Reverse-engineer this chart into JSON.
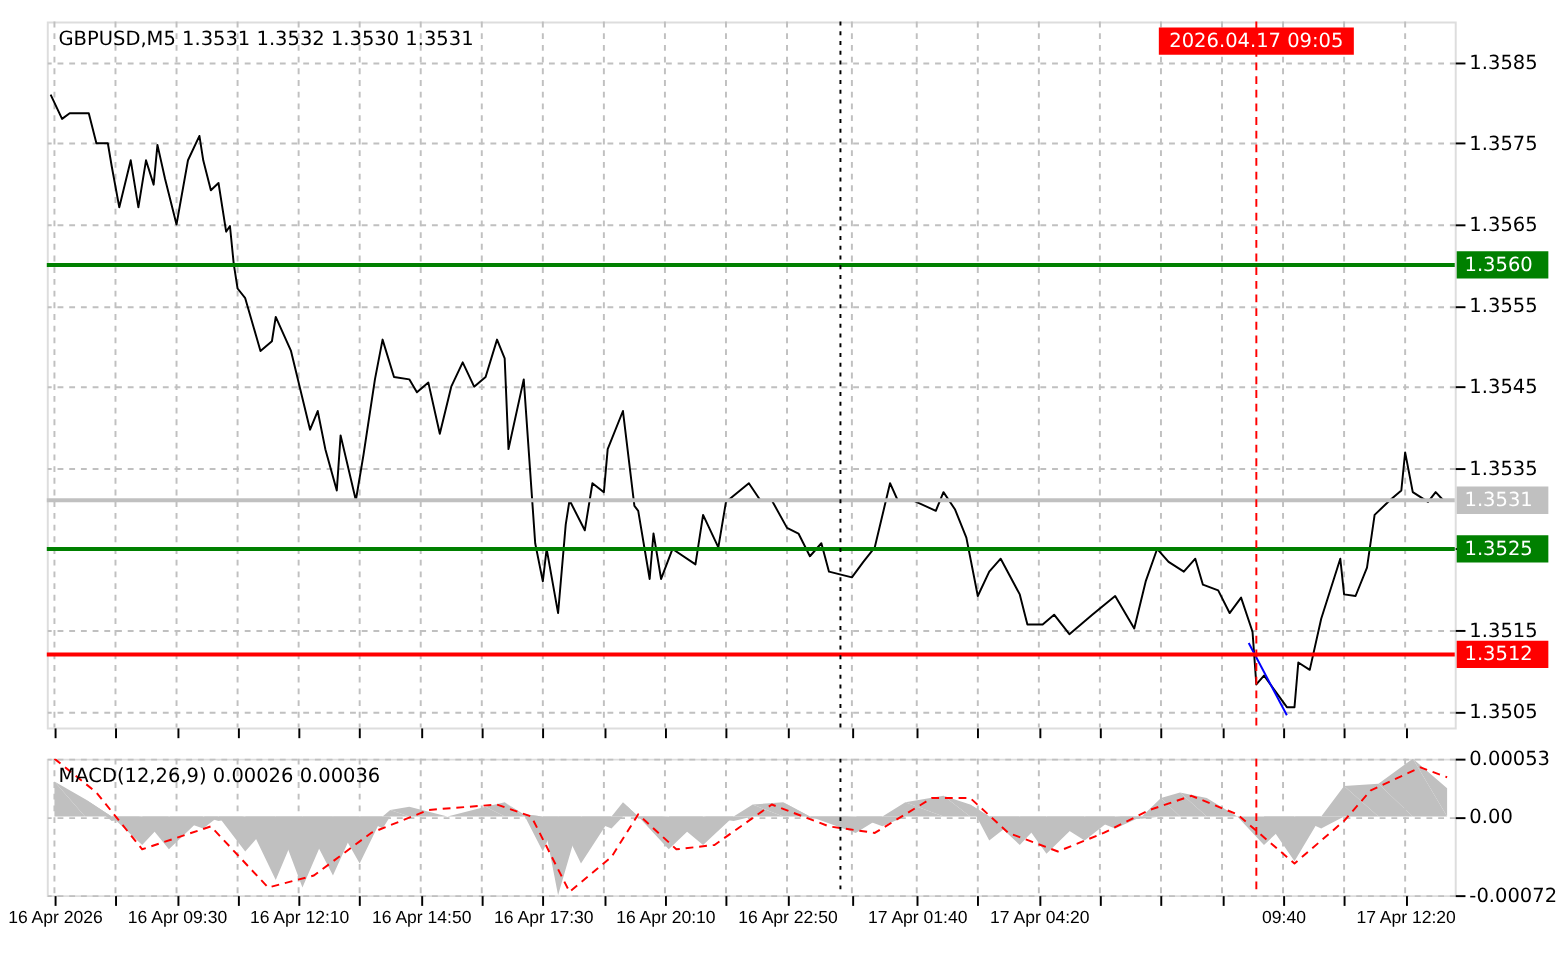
{
  "chart_data": [
    {
      "type": "line",
      "title": "GBPUSD,M5  1.3531 1.3532 1.3530 1.3531",
      "tick_labels": "y",
      "grid": true,
      "marker": "none",
      "line_style": "solid",
      "xlim": [
        "2026-04-16T06:40",
        "2026-04-17T13:25"
      ],
      "ylim": [
        1.3503,
        1.359
      ],
      "xticks": [
        {
          "value": "2026-04-16T06:50",
          "label": null
        },
        {
          "value": "2026-04-16T08:10",
          "label": null
        },
        {
          "value": "2026-04-16T09:30",
          "label": null
        },
        {
          "value": "2026-04-16T10:50",
          "label": null
        },
        {
          "value": "2026-04-16T12:10",
          "label": null
        },
        {
          "value": "2026-04-16T13:30",
          "label": null
        },
        {
          "value": "2026-04-16T14:50",
          "label": null
        },
        {
          "value": "2026-04-16T16:10",
          "label": null
        },
        {
          "value": "2026-04-16T17:30",
          "label": null
        },
        {
          "value": "2026-04-16T18:50",
          "label": null
        },
        {
          "value": "2026-04-16T20:10",
          "label": null
        },
        {
          "value": "2026-04-16T21:30",
          "label": null
        },
        {
          "value": "2026-04-16T22:50",
          "label": null
        },
        {
          "value": "2026-04-17T00:15",
          "label": null
        },
        {
          "value": "2026-04-17T01:40",
          "label": null
        },
        {
          "value": "2026-04-17T03:00",
          "label": null
        },
        {
          "value": "2026-04-17T04:20",
          "label": null
        },
        {
          "value": "2026-04-17T05:40",
          "label": null
        },
        {
          "value": "2026-04-17T07:00",
          "label": null
        },
        {
          "value": "2026-04-17T08:20",
          "label": null
        },
        {
          "value": "2026-04-17T09:40",
          "label": null
        },
        {
          "value": "2026-04-17T11:00",
          "label": null
        },
        {
          "value": "2026-04-17T12:20",
          "label": null
        }
      ],
      "yticks": [
        1.3505,
        1.3515,
        {
          "value": 1.3525,
          "label": null
        },
        1.3535,
        1.3545,
        1.3555,
        1.3565,
        1.3575,
        1.3585
      ],
      "series": [
        {
          "color": "#000000",
          "x": [
            "2026-04-16T06:45",
            "2026-04-16T07:00",
            "2026-04-16T07:10",
            "2026-04-16T07:35",
            "2026-04-16T07:45",
            "2026-04-16T08:00",
            "2026-04-16T08:05",
            "2026-04-16T08:15",
            "2026-04-16T08:30",
            "2026-04-16T08:40",
            "2026-04-16T08:50",
            "2026-04-16T09:00",
            "2026-04-16T09:05",
            "2026-04-16T09:15",
            "2026-04-16T09:30",
            "2026-04-16T09:45",
            "2026-04-16T10:00",
            "2026-04-16T10:05",
            "2026-04-16T10:15",
            "2026-04-16T10:25",
            "2026-04-16T10:35",
            "2026-04-16T10:40",
            "2026-04-16T10:45",
            "2026-04-16T10:50",
            "2026-04-16T11:00",
            "2026-04-16T11:20",
            "2026-04-16T11:35",
            "2026-04-16T11:40",
            "2026-04-16T12:00",
            "2026-04-16T12:25",
            "2026-04-16T12:35",
            "2026-04-16T12:45",
            "2026-04-16T13:00",
            "2026-04-16T13:05",
            "2026-04-16T13:25",
            "2026-04-16T13:35",
            "2026-04-16T13:50",
            "2026-04-16T14:00",
            "2026-04-16T14:15",
            "2026-04-16T14:35",
            "2026-04-16T14:45",
            "2026-04-16T15:00",
            "2026-04-16T15:15",
            "2026-04-16T15:30",
            "2026-04-16T15:45",
            "2026-04-16T16:00",
            "2026-04-16T16:15",
            "2026-04-16T16:30",
            "2026-04-16T16:40",
            "2026-04-16T16:45",
            "2026-04-16T17:05",
            "2026-04-16T17:20",
            "2026-04-16T17:30",
            "2026-04-16T17:35",
            "2026-04-16T17:50",
            "2026-04-16T18:00",
            "2026-04-16T18:05",
            "2026-04-16T18:25",
            "2026-04-16T18:35",
            "2026-04-16T18:50",
            "2026-04-16T18:55",
            "2026-04-16T19:15",
            "2026-04-16T19:30",
            "2026-04-16T19:35",
            "2026-04-16T19:50",
            "2026-04-16T19:55",
            "2026-04-16T20:05",
            "2026-04-16T20:20",
            "2026-04-16T20:50",
            "2026-04-16T21:00",
            "2026-04-16T21:20",
            "2026-04-16T21:30",
            "2026-04-16T22:00",
            "2026-04-16T22:15",
            "2026-04-16T22:30",
            "2026-04-16T22:50",
            "2026-04-16T23:05",
            "2026-04-16T23:20",
            "2026-04-16T23:35",
            "2026-04-16T23:45",
            "2026-04-17T00:15",
            "2026-04-17T00:30",
            "2026-04-17T00:45",
            "2026-04-17T01:05",
            "2026-04-17T01:15",
            "2026-04-17T01:35",
            "2026-04-17T02:05",
            "2026-04-17T02:15",
            "2026-04-17T02:30",
            "2026-04-17T02:45",
            "2026-04-17T03:00",
            "2026-04-17T03:15",
            "2026-04-17T03:30",
            "2026-04-17T03:55",
            "2026-04-17T04:05",
            "2026-04-17T04:25",
            "2026-04-17T04:40",
            "2026-04-17T05:00",
            "2026-04-17T05:30",
            "2026-04-17T06:00",
            "2026-04-17T06:25",
            "2026-04-17T06:40",
            "2026-04-17T06:55",
            "2026-04-17T07:10",
            "2026-04-17T07:30",
            "2026-04-17T07:45",
            "2026-04-17T07:55",
            "2026-04-17T08:15",
            "2026-04-17T08:30",
            "2026-04-17T08:45",
            "2026-04-17T09:00",
            "2026-04-17T09:05",
            "2026-04-17T09:15",
            "2026-04-17T09:45",
            "2026-04-17T09:55",
            "2026-04-17T10:00",
            "2026-04-17T10:15",
            "2026-04-17T10:30",
            "2026-04-17T10:55",
            "2026-04-17T11:00",
            "2026-04-17T11:15",
            "2026-04-17T11:30",
            "2026-04-17T11:40",
            "2026-04-17T12:00",
            "2026-04-17T12:15",
            "2026-04-17T12:20",
            "2026-04-17T12:30",
            "2026-04-17T12:50",
            "2026-04-17T13:00",
            "2026-04-17T13:10"
          ],
          "values": [
            1.3581,
            1.3578,
            1.35787,
            1.35787,
            1.3575,
            1.3575,
            1.35722,
            1.35671,
            1.35729,
            1.35671,
            1.35729,
            1.35699,
            1.35748,
            1.35706,
            1.3565,
            1.35729,
            1.35759,
            1.35729,
            1.35692,
            1.35701,
            1.35641,
            1.35648,
            1.35601,
            1.35571,
            1.35559,
            1.35494,
            1.35506,
            1.35536,
            1.35494,
            1.35397,
            1.3542,
            1.35373,
            1.35322,
            1.3539,
            1.3531,
            1.35366,
            1.35459,
            1.35508,
            1.35462,
            1.35459,
            1.35443,
            1.35455,
            1.35392,
            1.3545,
            1.3548,
            1.3545,
            1.35462,
            1.35508,
            1.35485,
            1.35373,
            1.35459,
            1.35257,
            1.3521,
            1.3525,
            1.35171,
            1.3528,
            1.3531,
            1.35273,
            1.35331,
            1.3532,
            1.35373,
            1.3542,
            1.35303,
            1.35297,
            1.35213,
            1.35269,
            1.35213,
            1.3525,
            1.35231,
            1.35292,
            1.35252,
            1.35308,
            1.35331,
            1.3531,
            1.3531,
            1.35276,
            1.35269,
            1.35241,
            1.35257,
            1.35222,
            1.35215,
            1.35234,
            1.35252,
            1.35331,
            1.3531,
            1.3531,
            1.35297,
            1.3532,
            1.35299,
            1.35264,
            1.35192,
            1.35222,
            1.35238,
            1.35194,
            1.35157,
            1.35157,
            1.35169,
            1.35145,
            1.35169,
            1.35192,
            1.35152,
            1.3521,
            1.3525,
            1.35234,
            1.35222,
            1.35238,
            1.35206,
            1.35199,
            1.35171,
            1.3519,
            1.35148,
            1.35083,
            1.35094,
            1.35055,
            1.35055,
            1.3511,
            1.35101,
            1.35164,
            1.35238,
            1.35194,
            1.35192,
            1.35227,
            1.35292,
            1.3531,
            1.35322,
            1.35369,
            1.3532,
            1.35308,
            1.3532,
            1.3531
          ]
        },
        {
          "color": "#0000ff",
          "x": [
            "2026-04-17T08:55",
            "2026-04-17T09:45"
          ],
          "values": [
            1.35134,
            1.35045
          ]
        }
      ],
      "ref_lines": [
        {
          "axis": "y",
          "value": 1.356,
          "label": "1.3560",
          "color": "#008000",
          "line_style": "solid"
        },
        {
          "axis": "y",
          "value": 1.3525,
          "label": "1.3525",
          "color": "#008000",
          "line_style": "solid"
        },
        {
          "axis": "y",
          "value": 1.3512,
          "label": "1.3512",
          "color": "#ff0000",
          "line_style": "solid"
        },
        {
          "axis": "y",
          "value": 1.3531,
          "label": "1.3531",
          "color": "#c0c0c0",
          "line_style": "solid"
        },
        {
          "axis": "x",
          "value": "2026-04-17T00:00",
          "color": "#000000",
          "line_style": "dotted"
        },
        {
          "axis": "x",
          "value": "2026-04-17T09:05",
          "label": "2026.04.17 09:05",
          "color": "#ff0000",
          "line_style": "dashed"
        }
      ]
    },
    {
      "type": "area",
      "title": "MACD(12,26,9) 0.00026 0.00036",
      "grid": true,
      "marker": "none",
      "xlim": [
        "2026-04-16T06:40",
        "2026-04-17T13:25"
      ],
      "ylim": [
        -0.00072,
        0.00053
      ],
      "xticks": [
        {
          "value": "2026-04-16T06:50",
          "label": "16 Apr 2026"
        },
        {
          "value": "2026-04-16T08:10",
          "label": null
        },
        {
          "value": "2026-04-16T09:30",
          "label": "16 Apr 09:30"
        },
        {
          "value": "2026-04-16T10:50",
          "label": null
        },
        {
          "value": "2026-04-16T12:10",
          "label": "16 Apr 12:10"
        },
        {
          "value": "2026-04-16T13:30",
          "label": null
        },
        {
          "value": "2026-04-16T14:50",
          "label": "16 Apr 14:50"
        },
        {
          "value": "2026-04-16T16:10",
          "label": null
        },
        {
          "value": "2026-04-16T17:30",
          "label": "16 Apr 17:30"
        },
        {
          "value": "2026-04-16T18:50",
          "label": null
        },
        {
          "value": "2026-04-16T20:10",
          "label": "16 Apr 20:10"
        },
        {
          "value": "2026-04-16T21:30",
          "label": null
        },
        {
          "value": "2026-04-16T22:50",
          "label": "16 Apr 22:50"
        },
        {
          "value": "2026-04-17T00:15",
          "label": null
        },
        {
          "value": "2026-04-17T01:40",
          "label": "17 Apr 01:40"
        },
        {
          "value": "2026-04-17T03:00",
          "label": null
        },
        {
          "value": "2026-04-17T04:20",
          "label": "17 Apr 04:20"
        },
        {
          "value": "2026-04-17T05:40",
          "label": null
        },
        {
          "value": "2026-04-17T07:00",
          "label": null
        },
        {
          "value": "2026-04-17T08:20",
          "label": null
        },
        {
          "value": "2026-04-17T09:40",
          "label": "09:40"
        },
        {
          "value": "2026-04-17T11:00",
          "label": null
        },
        {
          "value": "2026-04-17T12:20",
          "label": "17 Apr 12:20"
        }
      ],
      "yticks": [
        -0.00072,
        {
          "value": 0,
          "label": "0.00"
        },
        0.00053
      ],
      "series": [
        {
          "type": "area",
          "color": "#c0c0c0",
          "x": [
            "2026-04-16T06:50",
            "2026-04-16T07:30",
            "2026-04-16T08:05",
            "2026-04-16T08:45",
            "2026-04-16T09:20",
            "2026-04-16T10:05",
            "2026-04-16T10:25",
            "2026-04-16T11:00",
            "2026-04-16T11:40",
            "2026-04-16T12:15",
            "2026-04-16T12:55",
            "2026-04-16T13:30",
            "2026-04-16T14:00",
            "2026-04-16T14:10",
            "2026-04-16T14:35",
            "2026-04-16T15:25",
            "2026-04-16T16:15",
            "2026-04-16T16:40",
            "2026-04-16T17:05",
            "2026-04-16T17:30",
            "2026-04-16T17:50",
            "2026-04-16T18:20",
            "2026-04-16T19:00",
            "2026-04-16T19:15",
            "2026-04-16T19:35",
            "2026-04-16T20:15",
            "2026-04-16T21:00",
            "2026-04-16T21:40",
            "2026-04-16T22:05",
            "2026-04-16T22:45",
            "2026-04-16T23:20",
            "2026-04-17T00:20",
            "2026-04-17T00:55",
            "2026-04-17T01:25",
            "2026-04-17T02:15",
            "2026-04-17T02:50",
            "2026-04-17T03:15",
            "2026-04-17T03:55",
            "2026-04-17T04:30",
            "2026-04-17T05:20",
            "2026-04-17T06:00",
            "2026-04-17T06:35",
            "2026-04-17T07:00",
            "2026-04-17T07:25",
            "2026-04-17T08:00",
            "2026-04-17T08:40",
            "2026-04-17T09:15",
            "2026-04-17T09:55",
            "2026-04-17T10:30",
            "2026-04-17T11:00",
            "2026-04-17T11:45",
            "2026-04-17T12:30",
            "2026-04-17T13:15"
          ],
          "values": [
            0.00032,
            0.00016,
            -4e-05,
            -0.00026,
            -0.0003,
            -0.00011,
            -4e-05,
            -0.00032,
            -0.00058,
            -0.00065,
            -0.00054,
            -0.00043,
            -0.00011,
            6e-05,
            9e-05,
            0,
            9e-05,
            0.00013,
            2e-05,
            -0.00032,
            -0.00072,
            -0.00043,
            -0.00011,
            0.00013,
            -2e-05,
            -0.0003,
            -0.00026,
            -4e-05,
            0.00011,
            0.00013,
            -2e-05,
            -0.00015,
            -9e-05,
            0.00013,
            0.00019,
            0.00011,
            -0.00022,
            -0.00026,
            -0.00034,
            -0.00022,
            -0.00011,
            -2e-05,
            0.00017,
            0.00022,
            0.00017,
            0,
            -0.00026,
            -0.00041,
            -0.00011,
            0.00028,
            0.0003,
            0.00053,
            0.00026
          ]
        },
        {
          "type": "line",
          "line_style": "dashed",
          "color": "#ff0000",
          "x": [
            "2026-04-16T06:50",
            "2026-04-16T07:45",
            "2026-04-16T08:45",
            "2026-04-16T10:15",
            "2026-04-16T11:30",
            "2026-04-16T12:30",
            "2026-04-16T13:45",
            "2026-04-16T15:00",
            "2026-04-16T16:30",
            "2026-04-16T17:15",
            "2026-04-16T18:05",
            "2026-04-16T19:00",
            "2026-04-16T19:35",
            "2026-04-16T20:25",
            "2026-04-16T21:15",
            "2026-04-16T22:30",
            "2026-04-16T23:45",
            "2026-04-17T00:45",
            "2026-04-17T02:00",
            "2026-04-17T02:50",
            "2026-04-17T03:40",
            "2026-04-17T04:45",
            "2026-04-17T05:45",
            "2026-04-17T06:45",
            "2026-04-17T07:40",
            "2026-04-17T08:40",
            "2026-04-17T09:55",
            "2026-04-17T11:00",
            "2026-04-17T11:35",
            "2026-04-17T12:40",
            "2026-04-17T13:15"
          ],
          "values": [
            0.00053,
            0.00022,
            -0.0003,
            -9e-05,
            -0.00065,
            -0.00054,
            -0.00015,
            6e-05,
            0.00011,
            0,
            -0.00069,
            -0.00037,
            2e-05,
            -0.0003,
            -0.00026,
            0.00011,
            -9e-05,
            -0.00015,
            0.00017,
            0.00017,
            -0.00015,
            -0.00032,
            -0.00015,
            6e-05,
            0.00019,
            2e-05,
            -0.00043,
            -4e-05,
            0.00024,
            0.00045,
            0.00036
          ]
        }
      ],
      "ref_lines": [
        {
          "axis": "x",
          "value": "2026-04-17T00:00",
          "color": "#000000",
          "line_style": "dotted"
        },
        {
          "axis": "x",
          "value": "2026-04-17T09:05",
          "color": "#ff0000",
          "line_style": "dashed"
        }
      ]
    }
  ]
}
